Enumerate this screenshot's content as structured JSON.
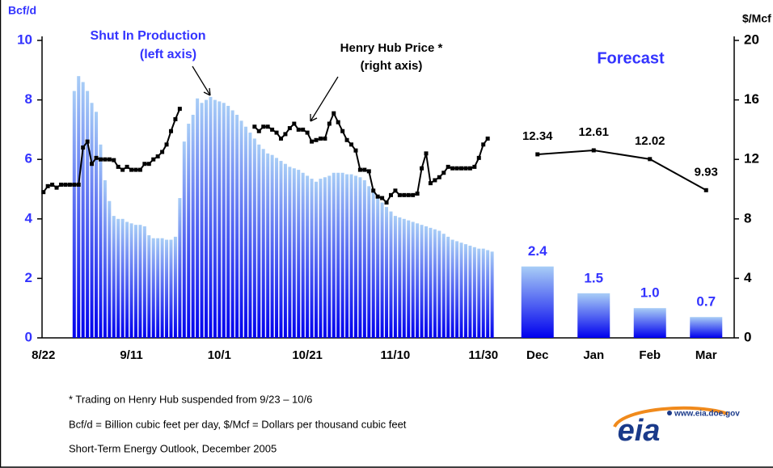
{
  "chart_data": {
    "type": "combo",
    "y_label": "Bcf/d",
    "y2_label": "$/Mcf",
    "categories": [
      "8/22",
      null,
      null,
      null,
      null,
      null,
      null,
      null,
      null,
      null,
      null,
      null,
      null,
      null,
      null,
      null,
      null,
      null,
      null,
      null,
      "9/11",
      null,
      null,
      null,
      null,
      null,
      null,
      null,
      null,
      null,
      null,
      null,
      null,
      null,
      null,
      null,
      null,
      null,
      null,
      null,
      "10/1",
      null,
      null,
      null,
      null,
      null,
      null,
      null,
      null,
      null,
      null,
      null,
      null,
      null,
      null,
      null,
      null,
      null,
      null,
      null,
      "10/21",
      null,
      null,
      null,
      null,
      null,
      null,
      null,
      null,
      null,
      null,
      null,
      null,
      null,
      null,
      null,
      null,
      null,
      null,
      null,
      "11/10",
      null,
      null,
      null,
      null,
      null,
      null,
      null,
      null,
      null,
      null,
      null,
      null,
      null,
      null,
      null,
      null,
      null,
      null,
      null,
      "11/30",
      null,
      null
    ],
    "series": [
      {
        "type": "bar",
        "color": "#0000ee",
        "values": [
          null,
          null,
          null,
          null,
          null,
          null,
          null,
          8.3,
          8.8,
          8.6,
          8.3,
          7.9,
          7.6,
          6.5,
          5.3,
          4.6,
          4.1,
          4.0,
          4.0,
          3.9,
          3.85,
          3.8,
          3.8,
          3.75,
          3.45,
          3.35,
          3.35,
          3.35,
          3.3,
          3.3,
          3.4,
          4.7,
          6.6,
          7.2,
          7.5,
          8.05,
          7.9,
          8.0,
          8.1,
          8.0,
          7.95,
          7.9,
          7.8,
          7.65,
          7.5,
          7.3,
          7.1,
          6.9,
          6.7,
          6.5,
          6.35,
          6.2,
          6.15,
          6.05,
          5.95,
          5.85,
          5.75,
          5.7,
          5.65,
          5.55,
          5.45,
          5.35,
          5.25,
          5.35,
          5.4,
          5.45,
          5.55,
          5.55,
          5.55,
          5.5,
          5.5,
          5.45,
          5.4,
          5.3,
          5.1,
          4.9,
          4.7,
          4.55,
          4.4,
          4.25,
          4.1,
          4.05,
          4.0,
          3.95,
          3.9,
          3.85,
          3.8,
          3.75,
          3.7,
          3.65,
          3.6,
          3.5,
          3.4,
          3.3,
          3.25,
          3.2,
          3.15,
          3.1,
          3.05,
          3.0,
          3.0,
          2.95,
          2.9
        ]
      },
      {
        "type": "line",
        "axis": "y2",
        "color": "#000000",
        "values": [
          9.8,
          10.2,
          10.3,
          10.1,
          10.3,
          10.3,
          10.3,
          10.3,
          10.3,
          12.8,
          13.2,
          11.7,
          12.1,
          12.0,
          12.0,
          12.0,
          11.95,
          11.5,
          11.3,
          11.5,
          11.3,
          11.3,
          11.3,
          11.7,
          11.7,
          12.0,
          12.2,
          12.5,
          13.0,
          13.9,
          14.7,
          15.4,
          null,
          null,
          null,
          null,
          null,
          null,
          null,
          null,
          null,
          null,
          null,
          null,
          null,
          null,
          null,
          null,
          14.2,
          13.9,
          14.2,
          14.2,
          14.0,
          13.8,
          13.4,
          13.7,
          14.1,
          14.4,
          14.0,
          14.0,
          13.8,
          13.2,
          13.3,
          13.4,
          13.4,
          14.4,
          15.1,
          14.5,
          13.9,
          13.3,
          13.0,
          12.6,
          11.3,
          11.3,
          11.2,
          9.9,
          9.5,
          9.4,
          9.1,
          9.6,
          9.9,
          9.6,
          9.6,
          9.6,
          9.6,
          9.7,
          11.4,
          12.4,
          10.4,
          10.6,
          10.8,
          11.1,
          11.5,
          11.4,
          11.4,
          11.4,
          11.4,
          11.4,
          11.5,
          12.1,
          13.0,
          13.4,
          null
        ]
      }
    ],
    "ylim": [
      0,
      10
    ],
    "yticks": [
      0,
      2,
      4,
      6,
      8,
      10
    ],
    "y2lim": [
      0,
      20
    ],
    "y2ticks": [
      0,
      4,
      8,
      12,
      16,
      20
    ],
    "annotations": [
      {
        "lines": [
          "Shut In Production",
          "(left axis)"
        ]
      },
      {
        "lines": [
          "Henry Hub Price *",
          "(right axis)"
        ]
      }
    ],
    "forecast": {
      "title": "Forecast",
      "categories": [
        "Dec",
        "Jan",
        "Feb",
        "Mar"
      ],
      "series": [
        {
          "type": "bar",
          "color": "#0000ee",
          "values": [
            2.4,
            1.5,
            1.0,
            0.7
          ],
          "value_labels": [
            "2.4",
            "1.5",
            "1.0",
            "0.7"
          ]
        },
        {
          "type": "line",
          "axis": "y2",
          "color": "#000000",
          "values": [
            12.34,
            12.61,
            12.02,
            9.93
          ]
        }
      ]
    },
    "notes": [
      "* Trading on Henry Hub suspended from 9/23 – 10/6",
      "Bcf/d = Billion cubic feet per day,  $/Mcf = Dollars per thousand cubic feet",
      "Short-Term Energy Outlook, December 2005"
    ]
  },
  "logo": {
    "url": "www.eia.doe.gov",
    "text": "eia"
  }
}
